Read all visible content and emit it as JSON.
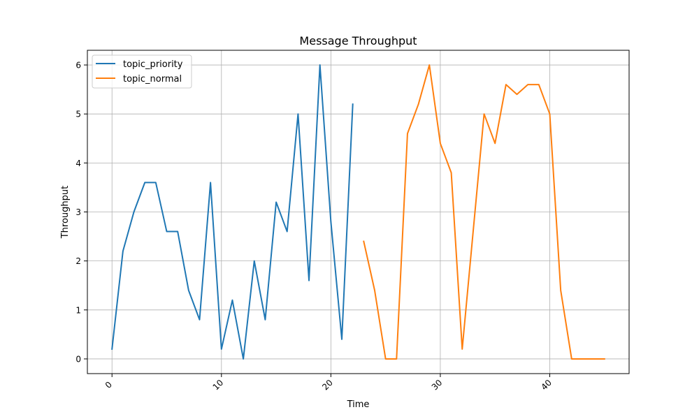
{
  "chart_data": {
    "type": "line",
    "title": "Message Throughput",
    "xlabel": "Time",
    "ylabel": "Throughput",
    "xlim": [
      -2.25,
      47.25
    ],
    "ylim": [
      -0.3,
      6.3
    ],
    "xticks": [
      0,
      10,
      20,
      30,
      40
    ],
    "yticks": [
      0,
      1,
      2,
      3,
      4,
      5,
      6
    ],
    "grid": true,
    "legend_position": "upper-left",
    "series": [
      {
        "name": "topic_priority",
        "color": "#1f77b4",
        "x": [
          0,
          1,
          2,
          3,
          4,
          5,
          6,
          7,
          8,
          9,
          10,
          11,
          12,
          13,
          14,
          15,
          16,
          17,
          18,
          19,
          20,
          21,
          22
        ],
        "y": [
          0.2,
          2.2,
          3.0,
          3.6,
          3.6,
          2.6,
          2.6,
          1.4,
          0.8,
          3.6,
          0.2,
          1.2,
          0.0,
          2.0,
          0.8,
          3.2,
          2.6,
          5.0,
          1.6,
          6.0,
          2.8,
          0.4,
          5.2
        ]
      },
      {
        "name": "topic_normal",
        "color": "#ff7f0e",
        "x": [
          23,
          24,
          25,
          26,
          27,
          28,
          29,
          30,
          31,
          32,
          33,
          34,
          35,
          36,
          37,
          38,
          39,
          40,
          41,
          42,
          43,
          44,
          45
        ],
        "y": [
          2.4,
          1.4,
          0.0,
          0.0,
          4.6,
          5.2,
          6.0,
          4.4,
          3.8,
          0.2,
          2.6,
          5.0,
          4.4,
          5.6,
          5.4,
          5.6,
          5.6,
          5.0,
          1.4,
          0.0,
          0.0,
          0.0,
          0.0
        ]
      }
    ]
  }
}
